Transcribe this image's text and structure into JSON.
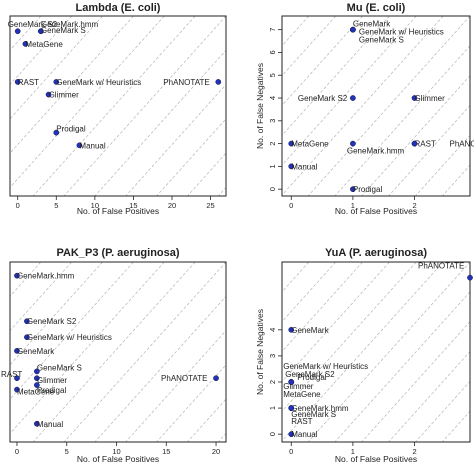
{
  "chart_data": [
    {
      "type": "scatter",
      "title": "Lambda (E. coli)",
      "xlabel": "No. of False Positives",
      "ylabel": "",
      "xlim": [
        -1,
        27
      ],
      "ylim": [
        0.5,
        7.6
      ],
      "xticks": [
        "0",
        "5",
        "10",
        "15",
        "20",
        "25"
      ],
      "yticks": [],
      "points": [
        {
          "label": "GeneMark S2",
          "x": 0,
          "y": 7
        },
        {
          "label": "GeneMark.hmm",
          "x": 3,
          "y": 7
        },
        {
          "label": "GeneMark S",
          "x": 3,
          "y": 7
        },
        {
          "label": "MetaGene",
          "x": 1,
          "y": 6.5
        },
        {
          "label": "RAST",
          "x": 0,
          "y": 5
        },
        {
          "label": "GeneMark w/ Heuristics",
          "x": 5,
          "y": 5
        },
        {
          "label": "PhANOTATE",
          "x": 26,
          "y": 5
        },
        {
          "label": "Glimmer",
          "x": 4,
          "y": 4.5
        },
        {
          "label": "Prodigal",
          "x": 5,
          "y": 3
        },
        {
          "label": "Manual",
          "x": 8,
          "y": 2.5
        }
      ]
    },
    {
      "type": "scatter",
      "title": "Mu (E. coli)",
      "xlabel": "No. of False Positives",
      "ylabel": "No. of False Negatives",
      "xlim": [
        -0.15,
        2.9
      ],
      "ylim": [
        -0.3,
        7.6
      ],
      "xticks": [
        "0",
        "1",
        "2"
      ],
      "yticks": [
        "0",
        "1",
        "2",
        "3",
        "4",
        "5",
        "6",
        "7"
      ],
      "points": [
        {
          "label": "GeneMark",
          "x": 1,
          "y": 7
        },
        {
          "label": "GeneMark w/ Heuristics",
          "x": 1,
          "y": 7
        },
        {
          "label": "GeneMark S",
          "x": 1,
          "y": 7
        },
        {
          "label": "GeneMark S2",
          "x": 1,
          "y": 4
        },
        {
          "label": "Glimmer",
          "x": 2,
          "y": 4
        },
        {
          "label": "MetaGene",
          "x": 0,
          "y": 2
        },
        {
          "label": "GeneMark.hmm",
          "x": 1,
          "y": 2
        },
        {
          "label": "RAST",
          "x": 2,
          "y": 2
        },
        {
          "label": "PhANOTATE",
          "x": 2,
          "y": 2
        },
        {
          "label": "Manual",
          "x": 0,
          "y": 1
        },
        {
          "label": "Prodigal",
          "x": 1,
          "y": 0
        }
      ]
    },
    {
      "type": "scatter",
      "title": "PAK_P3 (P. aeruginosa)",
      "xlabel": "No. of False Positives",
      "ylabel": "",
      "xlim": [
        -0.7,
        21
      ],
      "ylim": [
        -0.3,
        7.6
      ],
      "xticks": [
        "0",
        "5",
        "10",
        "15",
        "20"
      ],
      "yticks": [],
      "points": [
        {
          "label": "GeneMark.hmm",
          "x": 0,
          "y": 7
        },
        {
          "label": "GeneMark S2",
          "x": 1,
          "y": 5
        },
        {
          "label": "GeneMark w/ Heuristics",
          "x": 1,
          "y": 4.3
        },
        {
          "label": "GeneMark",
          "x": 0,
          "y": 3.7
        },
        {
          "label": "GeneMark S",
          "x": 2,
          "y": 2.8
        },
        {
          "label": "RAST",
          "x": 0,
          "y": 2.5
        },
        {
          "label": "Glimmer",
          "x": 2,
          "y": 2.5
        },
        {
          "label": "Prodigal",
          "x": 2,
          "y": 2.2
        },
        {
          "label": "MetaGene",
          "x": 0,
          "y": 2
        },
        {
          "label": "PhANOTATE",
          "x": 20,
          "y": 2.5
        },
        {
          "label": "Manual",
          "x": 2,
          "y": 0.5
        }
      ]
    },
    {
      "type": "scatter",
      "title": "YuA (P. aeruginosa)",
      "xlabel": "No. of False Positives",
      "ylabel": "No. of False Negatives",
      "xlim": [
        -0.15,
        2.9
      ],
      "ylim": [
        -0.3,
        6.6
      ],
      "xticks": [
        "0",
        "1",
        "2"
      ],
      "yticks": [
        "0",
        "1",
        "2",
        "3",
        "4"
      ],
      "points": [
        {
          "label": "PhANOTATE",
          "x": 2.9,
          "y": 6
        },
        {
          "label": "GeneMark",
          "x": 0,
          "y": 4
        },
        {
          "label": "GeneMark w/ Heuristics",
          "x": 0,
          "y": 2
        },
        {
          "label": "GeneMark S2",
          "x": 0,
          "y": 2
        },
        {
          "label": "Prodigal",
          "x": 0,
          "y": 2
        },
        {
          "label": "Glimmer",
          "x": 0,
          "y": 2
        },
        {
          "label": "MetaGene",
          "x": 0,
          "y": 2
        },
        {
          "label": "GeneMark.hmm",
          "x": 0,
          "y": 1
        },
        {
          "label": "GeneMark S",
          "x": 0,
          "y": 1
        },
        {
          "label": "RAST",
          "x": 0,
          "y": 1
        },
        {
          "label": "Manual",
          "x": 0,
          "y": 0
        }
      ]
    }
  ],
  "colors": {
    "point": "#2233bb",
    "frame": "#222222",
    "diagonal": "#b5b5b5",
    "text": "#222222"
  }
}
